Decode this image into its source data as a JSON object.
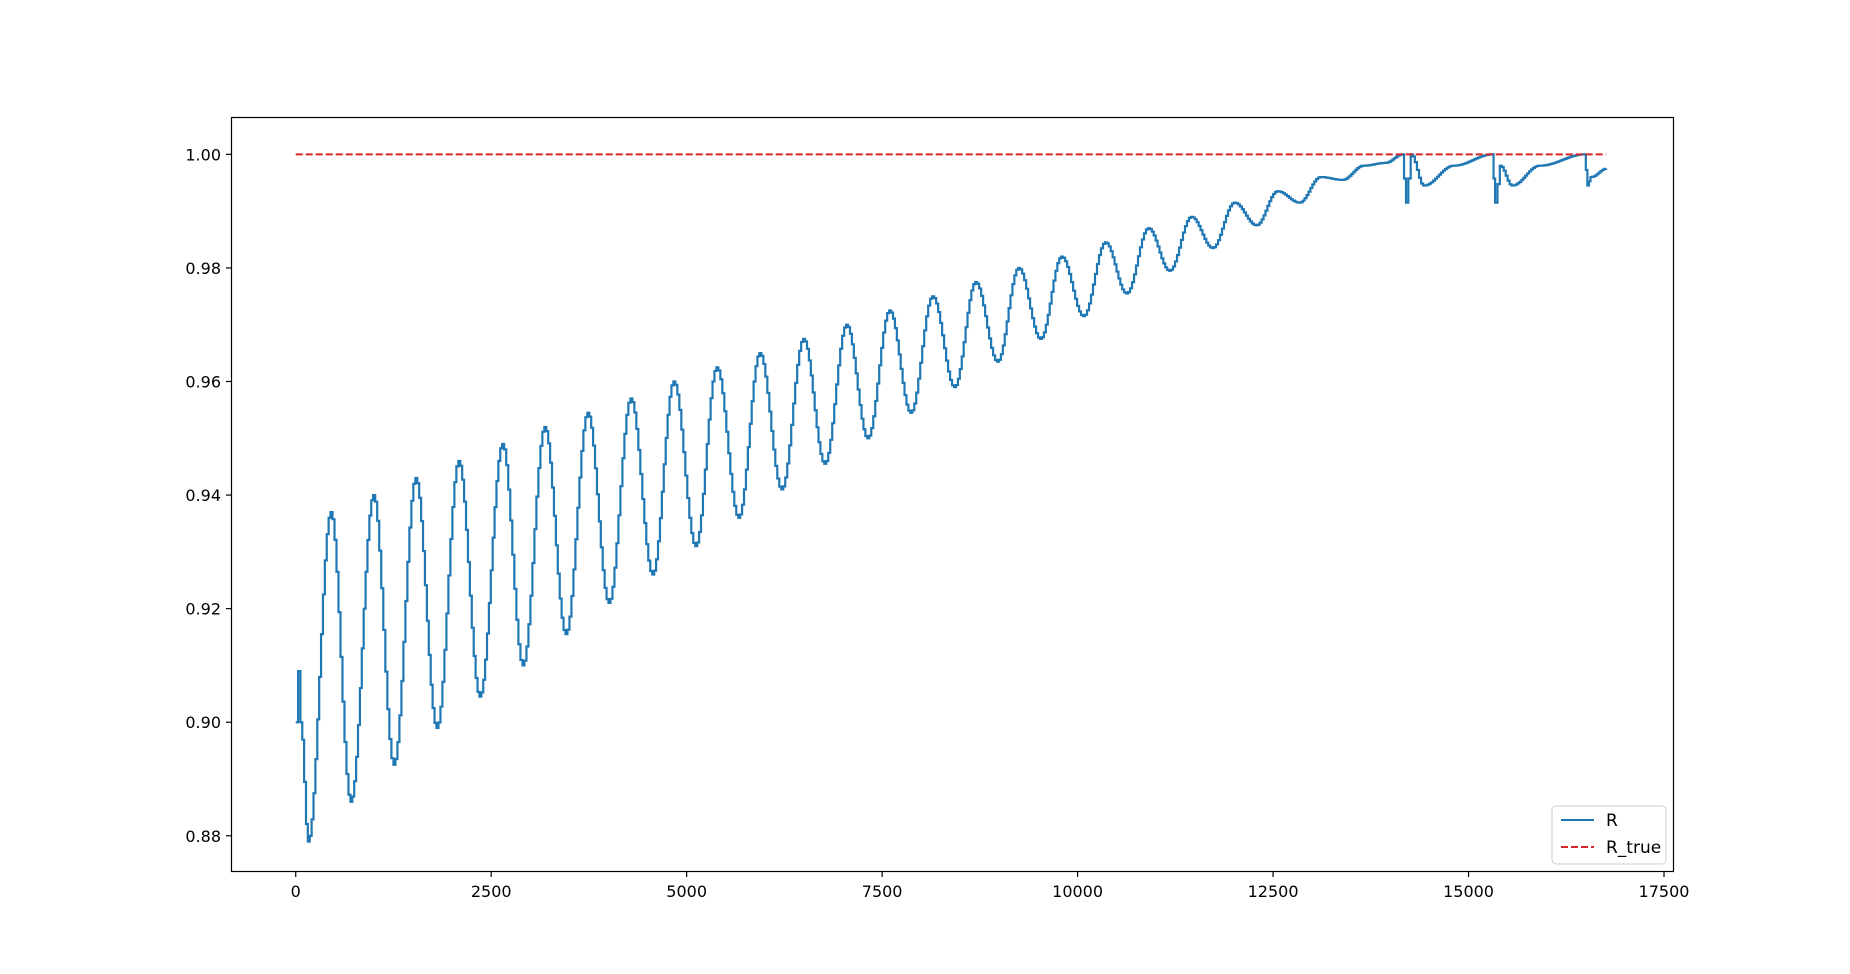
{
  "chart_data": {
    "type": "line",
    "title": "",
    "xlabel": "",
    "ylabel": "",
    "xlim": [
      -815,
      17615
    ],
    "ylim": [
      0.8738,
      1.0064
    ],
    "x_ticks": [
      0,
      2500,
      5000,
      7500,
      10000,
      12500,
      15000,
      17500
    ],
    "x_tick_labels": [
      "0",
      "2500",
      "5000",
      "7500",
      "10000",
      "12500",
      "15000",
      "17500"
    ],
    "y_ticks": [
      0.88,
      0.9,
      0.92,
      0.94,
      0.96,
      0.98,
      1.0
    ],
    "y_tick_labels": [
      "0.88",
      "0.90",
      "0.92",
      "0.94",
      "0.96",
      "0.98",
      "1.00"
    ],
    "grid": false,
    "legend_position": "lower-right",
    "series": [
      {
        "name": "R",
        "color": "#1f77b4",
        "style": "solid",
        "step": true,
        "x": [
          0,
          30,
          60,
          155,
          445,
          700,
          990,
          1250,
          1530,
          1800,
          2080,
          2350,
          2640,
          2900,
          3180,
          3450,
          3730,
          4000,
          4280,
          4560,
          4830,
          5110,
          5380,
          5660,
          5930,
          6210,
          6490,
          6760,
          7040,
          7310,
          7590,
          7860,
          8140,
          8420,
          8690,
          8970,
          9240,
          9520,
          9790,
          10070,
          10350,
          10620,
          10900,
          11170,
          11450,
          11720,
          12000,
          12280,
          12550,
          12830,
          13100,
          13380,
          13650,
          13930,
          14150,
          14200,
          14260,
          14420,
          14800,
          15300,
          15340,
          15400,
          15550,
          15900,
          16480,
          16520,
          16560,
          16760
        ],
        "y": [
          0.9,
          0.909,
          0.9,
          0.879,
          0.937,
          0.886,
          0.94,
          0.8925,
          0.943,
          0.899,
          0.946,
          0.9045,
          0.949,
          0.91,
          0.952,
          0.9155,
          0.9545,
          0.921,
          0.957,
          0.926,
          0.96,
          0.931,
          0.9625,
          0.936,
          0.965,
          0.941,
          0.9675,
          0.9455,
          0.97,
          0.95,
          0.9725,
          0.9545,
          0.975,
          0.959,
          0.9775,
          0.9635,
          0.98,
          0.9675,
          0.982,
          0.9715,
          0.9845,
          0.9755,
          0.987,
          0.9795,
          0.989,
          0.9835,
          0.9915,
          0.9875,
          0.9935,
          0.9915,
          0.996,
          0.9955,
          0.998,
          0.9985,
          1.0,
          0.9915,
          1.0,
          0.9945,
          0.998,
          1.0,
          0.9915,
          0.998,
          0.9945,
          0.998,
          1.0,
          0.9945,
          0.996,
          0.9975
        ]
      },
      {
        "name": "R_true",
        "color": "#d62728",
        "style": "dashed",
        "x": [
          0,
          16760
        ],
        "y": [
          1.0,
          1.0
        ]
      }
    ]
  }
}
